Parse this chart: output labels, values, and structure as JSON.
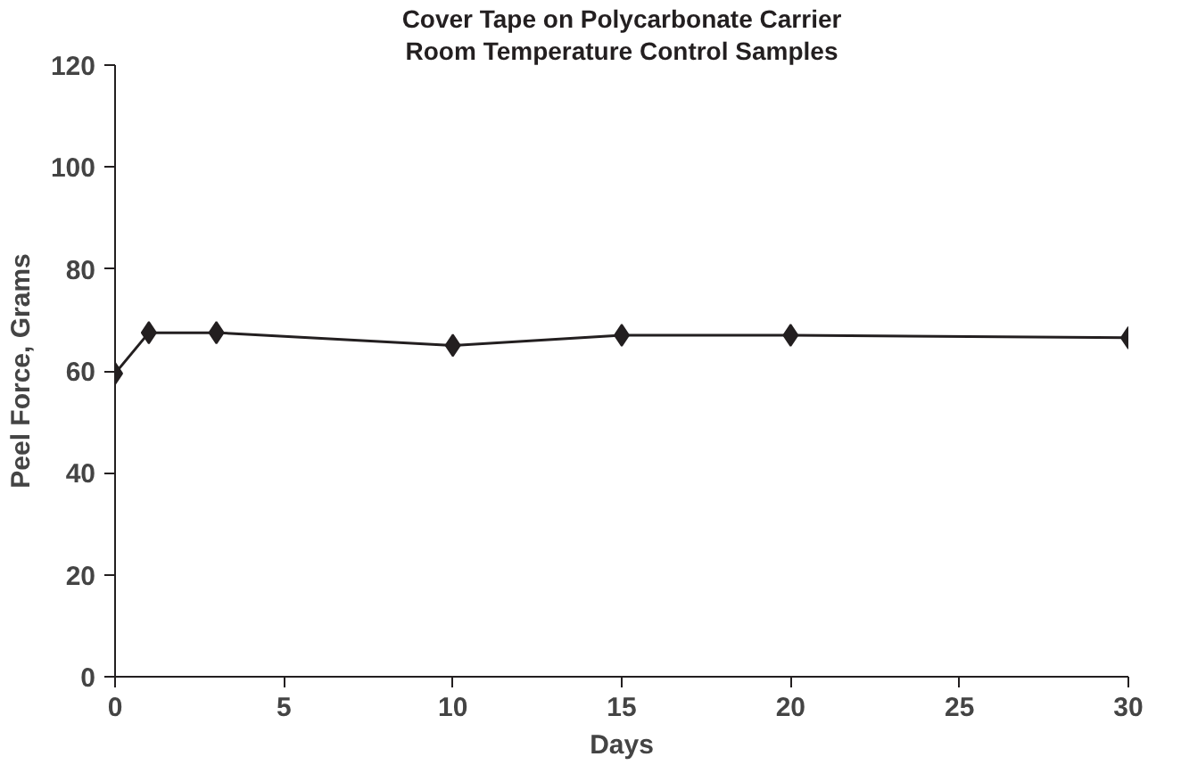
{
  "chart_data": {
    "type": "line",
    "title": "Cover Tape on Polycarbonate Carrier",
    "subtitle": "Room Temperature Control Samples",
    "xlabel": "Days",
    "ylabel": "Peel Force, Grams",
    "x": [
      0,
      1,
      3,
      10,
      15,
      20,
      30
    ],
    "series": [
      {
        "color": "#231f20",
        "values": [
          59.5,
          67.5,
          67.5,
          65,
          67,
          67,
          66.5
        ]
      }
    ],
    "xlim": [
      0,
      30
    ],
    "xticks": [
      0,
      5,
      10,
      15,
      20,
      25,
      30
    ],
    "ylim": [
      0,
      120
    ],
    "yticks": [
      0,
      20,
      40,
      60,
      80,
      100,
      120
    ],
    "marker": "diamond",
    "line_style": "solid",
    "grid": false
  }
}
